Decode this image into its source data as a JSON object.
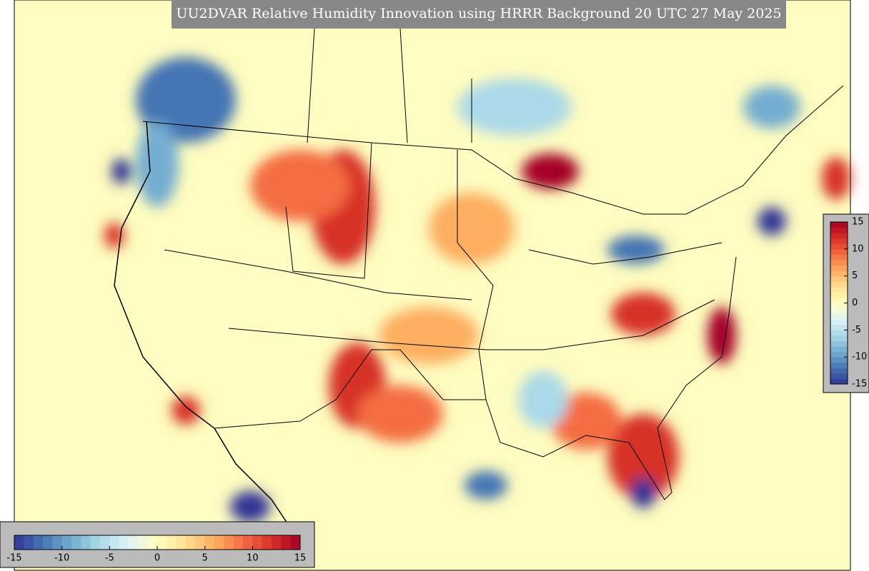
{
  "title": "UU2DVAR Relative Humidity Innovation using HRRR Background 20 UTC 27 May 2025",
  "colormap": [
    "#313695",
    "#4575b4",
    "#74add1",
    "#abd9e9",
    "#e0f3f8",
    "#ffffbf",
    "#fee090",
    "#fdae61",
    "#f46d43",
    "#d73027",
    "#a50026"
  ],
  "colorbars": [
    {
      "orientation": "vertical",
      "lim": [
        -15,
        15
      ],
      "ticks": [
        15,
        10,
        5,
        0,
        -5,
        -10,
        -15
      ]
    },
    {
      "orientation": "horizontal",
      "lim": [
        -15,
        15
      ],
      "ticks": [
        -15,
        -10,
        -5,
        0,
        5,
        10,
        15
      ]
    }
  ]
}
